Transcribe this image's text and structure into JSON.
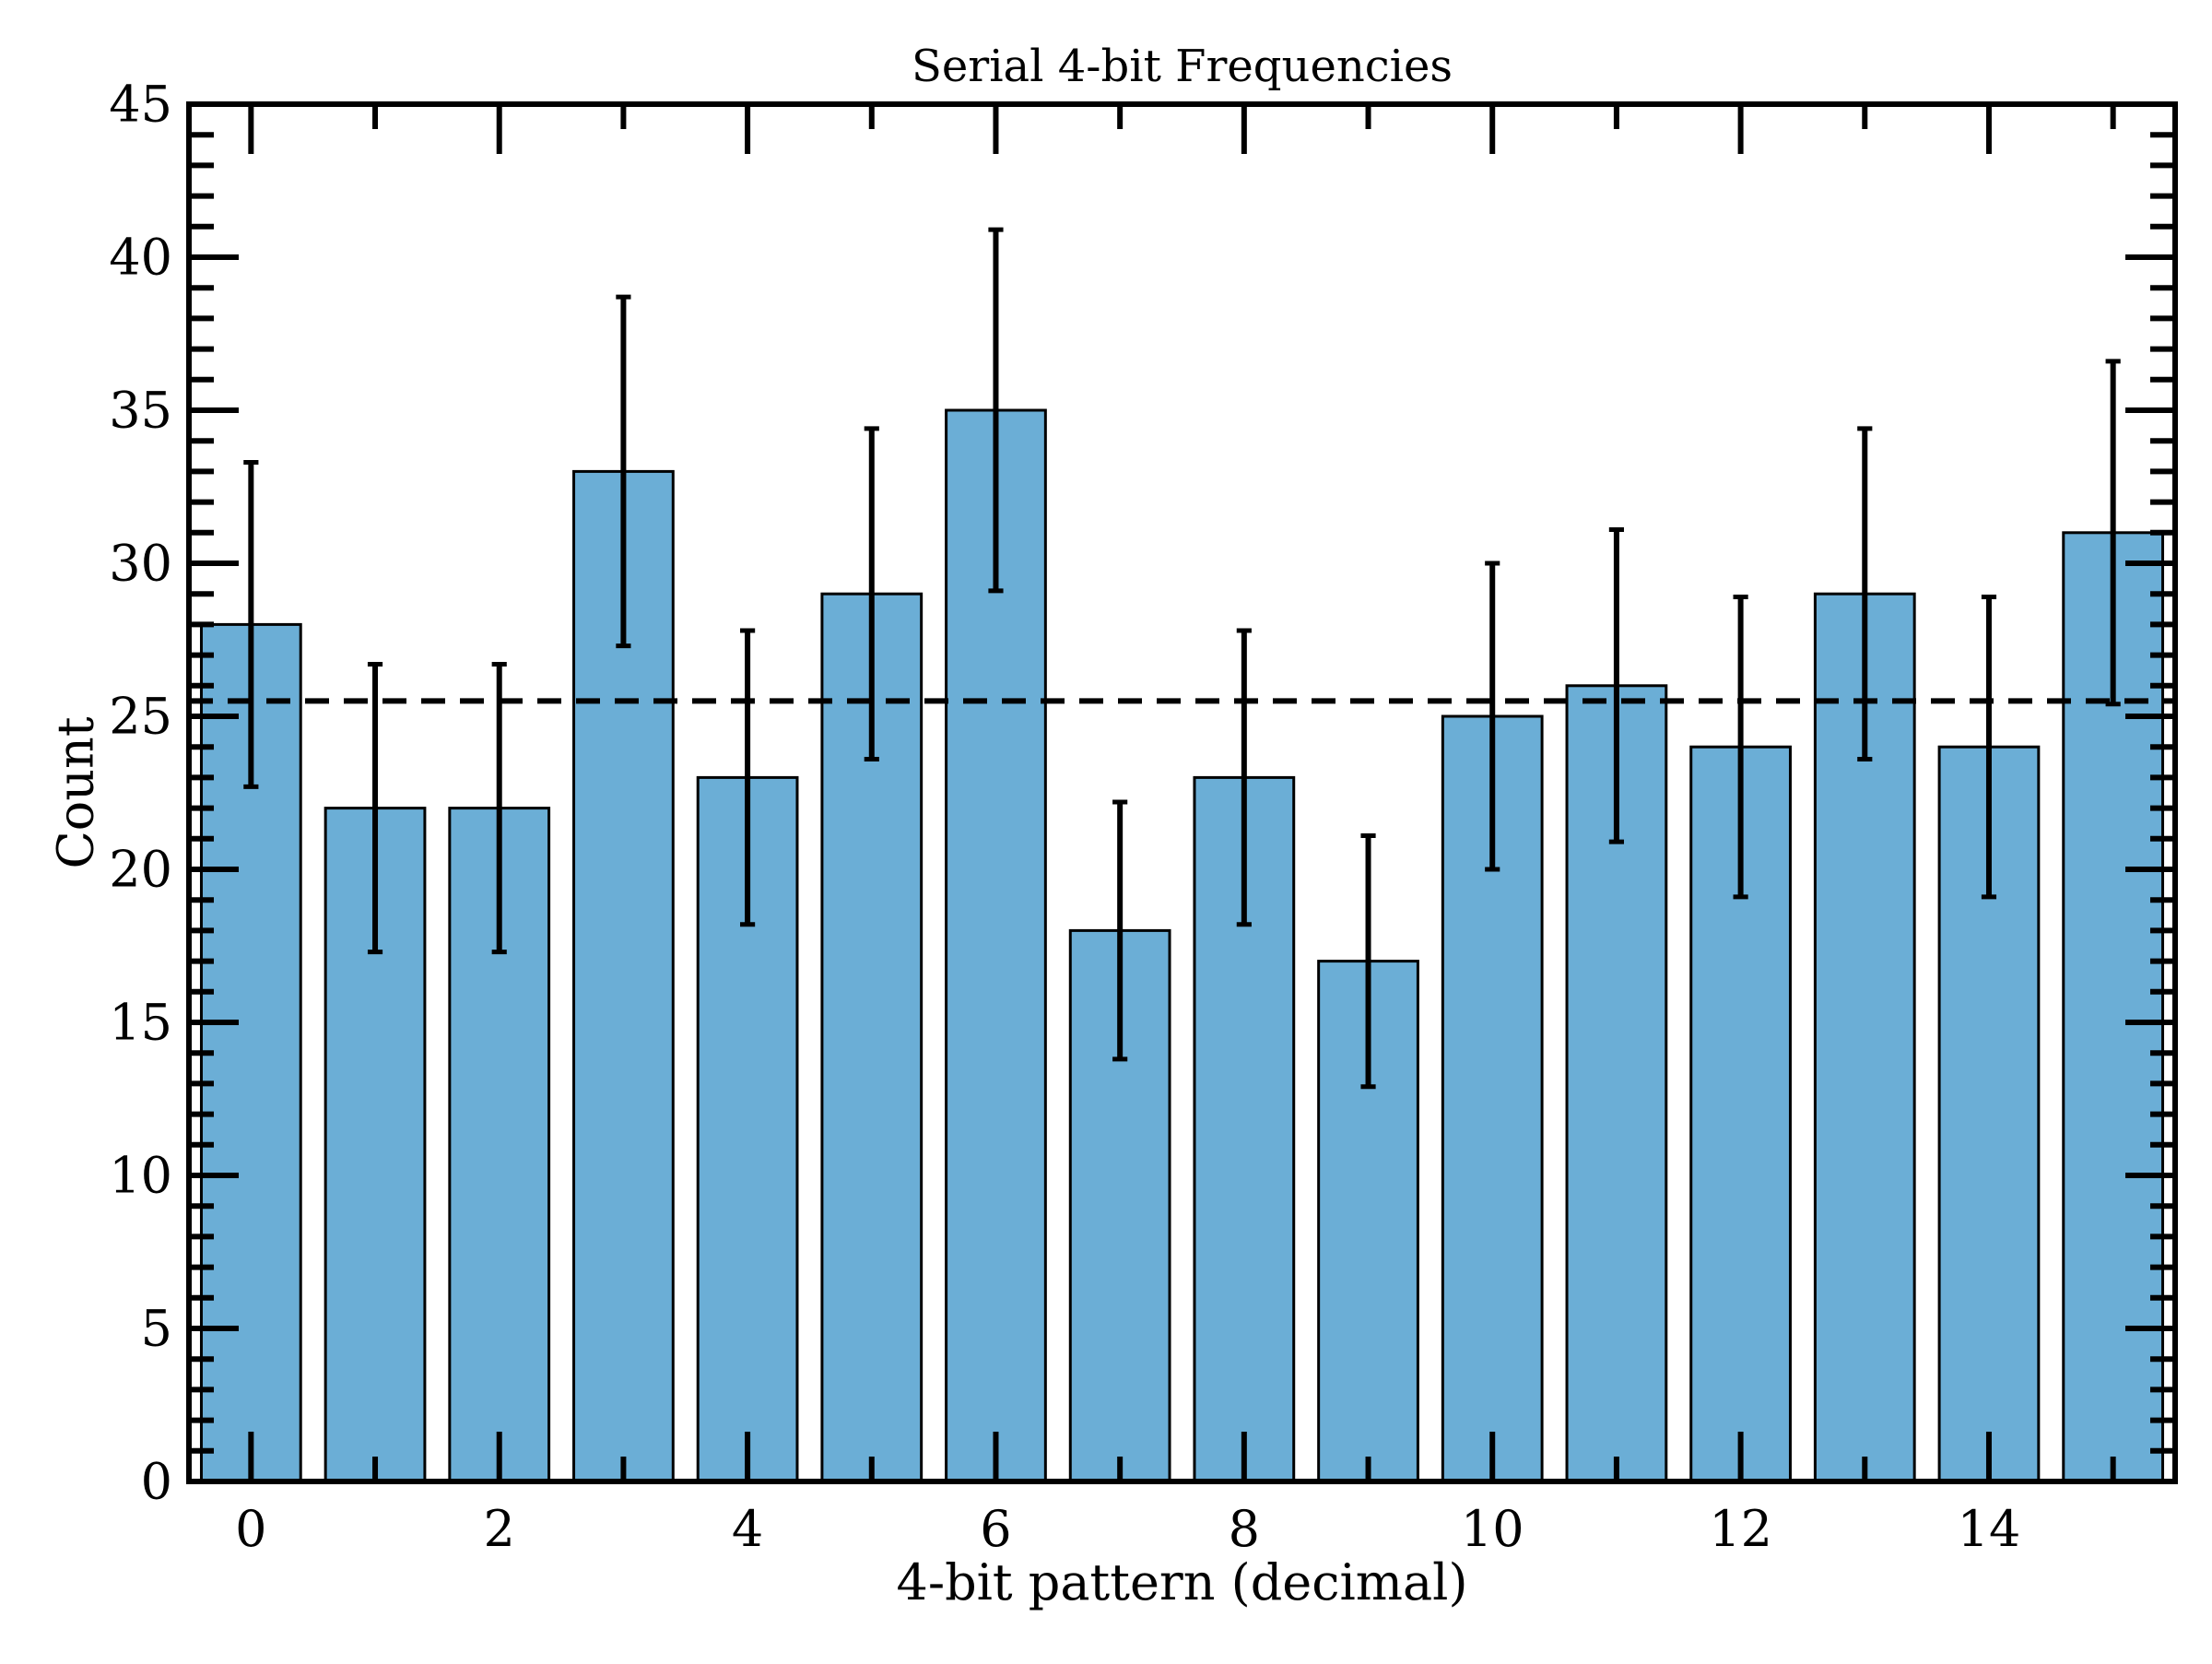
{
  "chart_data": {
    "type": "bar",
    "title": "Serial 4-bit Frequencies",
    "xlabel": "4-bit pattern (decimal)",
    "ylabel": "Count",
    "categories": [
      0,
      1,
      2,
      3,
      4,
      5,
      6,
      7,
      8,
      9,
      10,
      11,
      12,
      13,
      14,
      15
    ],
    "values": [
      28,
      22,
      22,
      33,
      23,
      29,
      35,
      18,
      23,
      17,
      25,
      26,
      24,
      29,
      24,
      31
    ],
    "error_bars": [
      5.3,
      4.7,
      4.7,
      5.7,
      4.8,
      5.4,
      5.9,
      4.2,
      4.8,
      4.1,
      5.0,
      5.1,
      4.9,
      5.4,
      4.9,
      5.6
    ],
    "reference_line": {
      "value": 25.5,
      "style": "dashed"
    },
    "xlim": [
      -0.5,
      15.5
    ],
    "ylim": [
      0,
      45
    ],
    "x_ticks": [
      0,
      2,
      4,
      6,
      8,
      10,
      12,
      14
    ],
    "y_ticks": [
      0,
      5,
      10,
      15,
      20,
      25,
      30,
      35,
      40,
      45
    ],
    "bar_color": "#6baed6",
    "edge_color": "#000000",
    "grid": false,
    "legend": "none"
  }
}
